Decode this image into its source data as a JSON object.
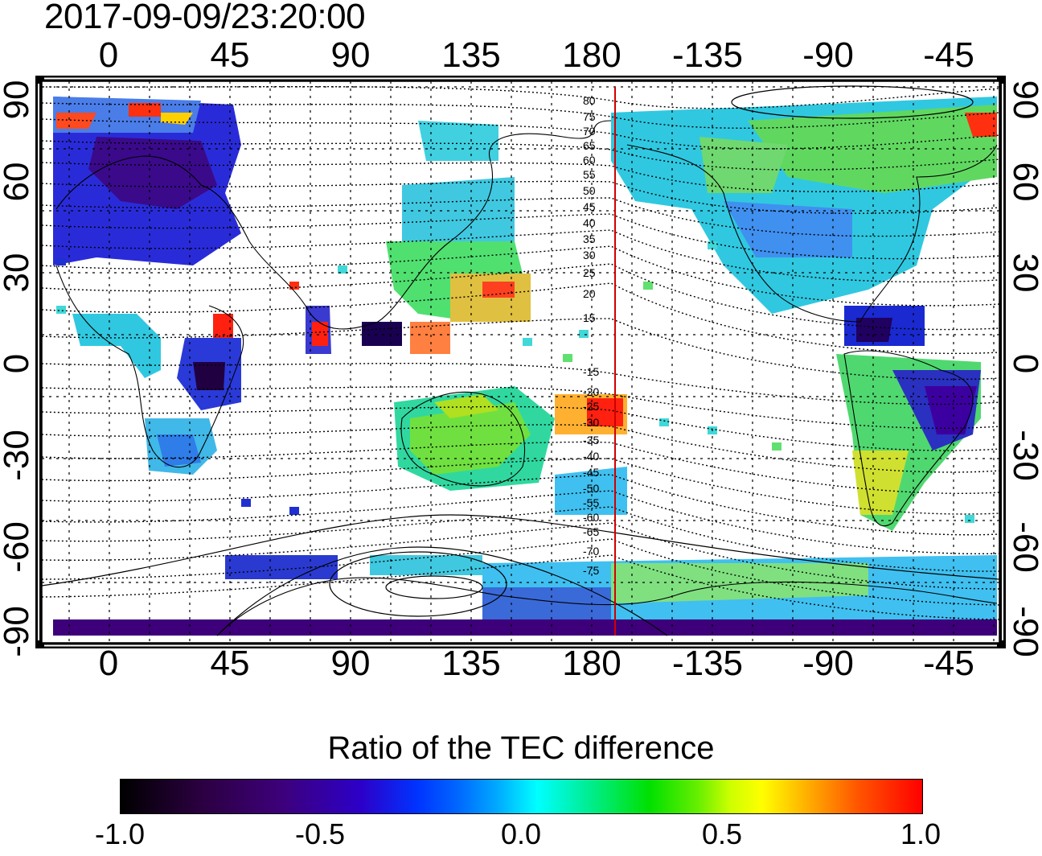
{
  "title": "2017-09-09/23:20:00",
  "map": {
    "lon_ticks": [
      "0",
      "45",
      "90",
      "135",
      "180",
      "-135",
      "-90",
      "-45"
    ],
    "lat_ticks": [
      "90",
      "60",
      "30",
      "0",
      "-30",
      "-60",
      "-90"
    ],
    "mlat_labels": [
      "80",
      "75",
      "70",
      "65",
      "60",
      "55",
      "50",
      "45",
      "40",
      "35",
      "30",
      "25",
      "20",
      "15",
      "-15",
      "-20",
      "-25",
      "-30",
      "-35",
      "-40",
      "-45",
      "-50",
      "-55",
      "-60",
      "-65",
      "-70",
      "-75"
    ],
    "terminator_line_color": "#d00000"
  },
  "colorbar": {
    "title": "Ratio of the TEC difference",
    "ticks": [
      "-1.0",
      "-0.5",
      "0.0",
      "0.5",
      "1.0"
    ],
    "colors": [
      "#000000",
      "#3d007a",
      "#0033ff",
      "#00ffff",
      "#00e000",
      "#ffff00",
      "#ff0000"
    ]
  }
}
